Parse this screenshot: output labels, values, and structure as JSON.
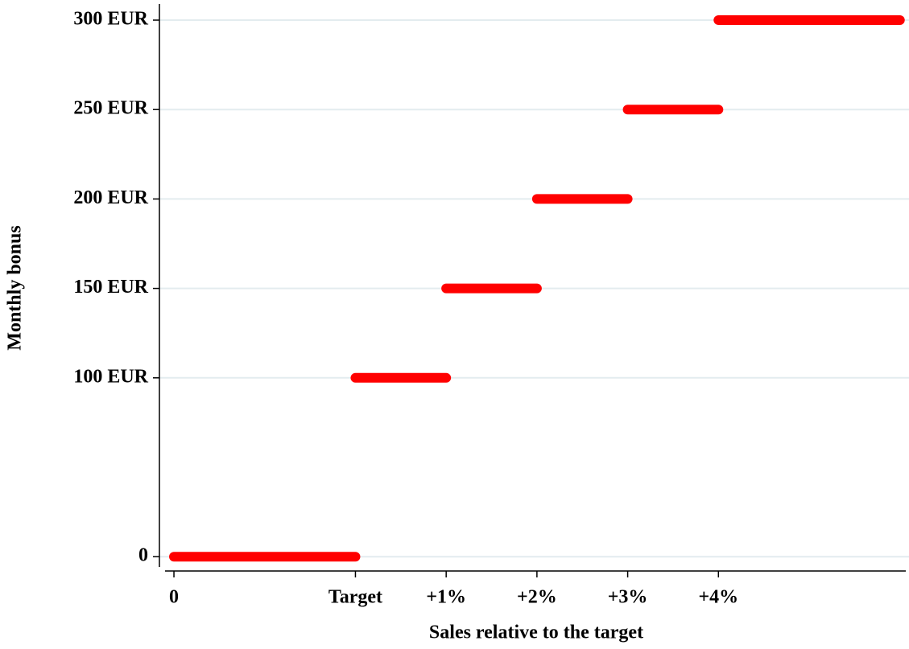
{
  "chart_data": {
    "type": "segments",
    "x_label": "Sales relative to the target",
    "y_label": "Monthly bonus",
    "color": "#ff0000",
    "grid": true,
    "xlim": [
      -0.16,
      8.1
    ],
    "ylim": [
      -8,
      309
    ],
    "xticks": [
      0,
      {
        "value": 2,
        "label": "Target"
      },
      {
        "value": 3,
        "label": "+1%"
      },
      {
        "value": 4,
        "label": "+2%"
      },
      {
        "value": 5,
        "label": "+3%"
      },
      {
        "value": 6,
        "label": "+4%"
      }
    ],
    "yticks": [
      0,
      {
        "value": 100,
        "label": "100 EUR"
      },
      {
        "value": 150,
        "label": "150 EUR"
      },
      {
        "value": 200,
        "label": "200 EUR"
      },
      {
        "value": 250,
        "label": "250 EUR"
      },
      {
        "value": 300,
        "label": "300 EUR"
      }
    ],
    "segments": [
      {
        "x0": 0,
        "x1": 2,
        "value": 0
      },
      {
        "x0": 2,
        "x1": 3,
        "value": 100
      },
      {
        "x0": 3,
        "x1": 4,
        "value": 150
      },
      {
        "x0": 4,
        "x1": 5,
        "value": 200
      },
      {
        "x0": 5,
        "x1": 6,
        "value": 250
      },
      {
        "x0": 6,
        "x1": 8,
        "value": 300
      }
    ]
  }
}
